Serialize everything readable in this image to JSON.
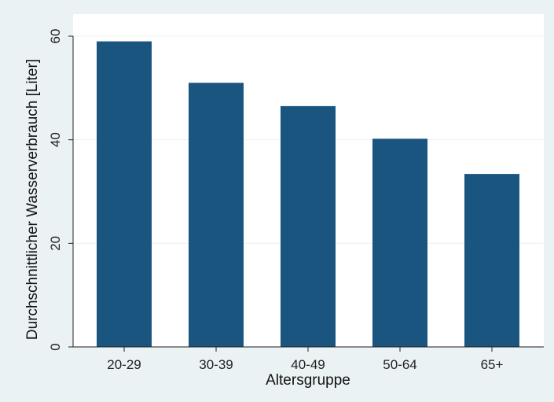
{
  "chart_data": {
    "type": "bar",
    "title": "",
    "xlabel": "Altersgruppe",
    "ylabel": "Durchschnittlicher Wasserverbrauch [Liter]",
    "categories": [
      "20-29",
      "30-39",
      "40-49",
      "50-64",
      "65+"
    ],
    "values": [
      59.0,
      51.0,
      46.5,
      40.2,
      33.4
    ],
    "ylim": [
      0,
      60
    ],
    "yticks": [
      0,
      20,
      40,
      60
    ],
    "ytick_labels": [
      "0",
      "20",
      "40",
      "60"
    ],
    "grid": true,
    "legend": "none",
    "colors": {
      "bar": "#1a5580",
      "outer_background": "#eaf2f3",
      "plot_background": "#ffffff",
      "gridline": "#eaf2f3",
      "axis": "#222222"
    }
  }
}
